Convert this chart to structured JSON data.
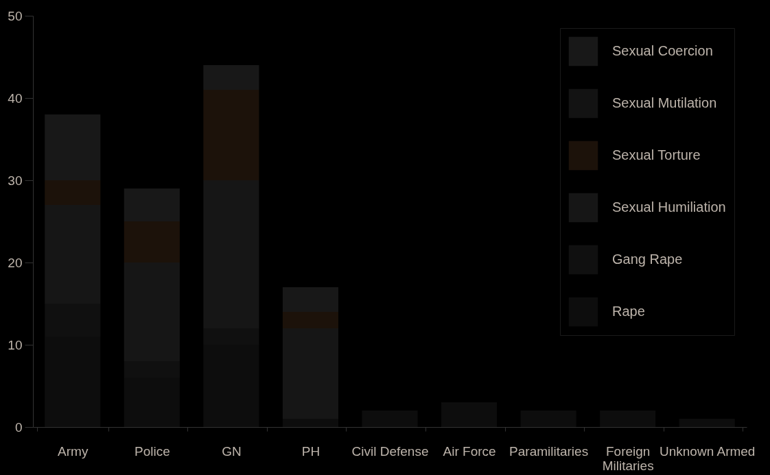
{
  "chart_data": {
    "type": "bar",
    "stacked": true,
    "categories": [
      "Army",
      "Police",
      "GN",
      "PH",
      "Civil Defense",
      "Air Force",
      "Paramilitaries",
      "Foreign Militaries",
      "Unknown Armed"
    ],
    "series": [
      {
        "name": "Rape",
        "color": "#0d0d0d",
        "values": [
          11,
          6,
          10,
          1,
          2,
          3,
          2,
          2,
          1
        ]
      },
      {
        "name": "Gang Rape",
        "color": "#101010",
        "values": [
          4,
          2,
          2,
          0,
          0,
          0,
          0,
          0,
          0
        ]
      },
      {
        "name": "Sexual Humiliation",
        "color": "#161616",
        "values": [
          12,
          12,
          18,
          11,
          0,
          0,
          0,
          0,
          0
        ]
      },
      {
        "name": "Sexual Torture",
        "color": "#1c120a",
        "values": [
          3,
          5,
          11,
          2,
          0,
          0,
          0,
          0,
          0
        ]
      },
      {
        "name": "Sexual Mutilation",
        "color": "#131313",
        "values": [
          0,
          0,
          0,
          0,
          0,
          0,
          0,
          0,
          0
        ]
      },
      {
        "name": "Sexual Coercion",
        "color": "#181818",
        "values": [
          8,
          4,
          3,
          3,
          0,
          0,
          0,
          0,
          0
        ]
      }
    ],
    "ylim": [
      0,
      50
    ],
    "yticks": [
      0,
      10,
      20,
      30,
      40,
      50
    ],
    "grid": false,
    "legend": "top right"
  }
}
